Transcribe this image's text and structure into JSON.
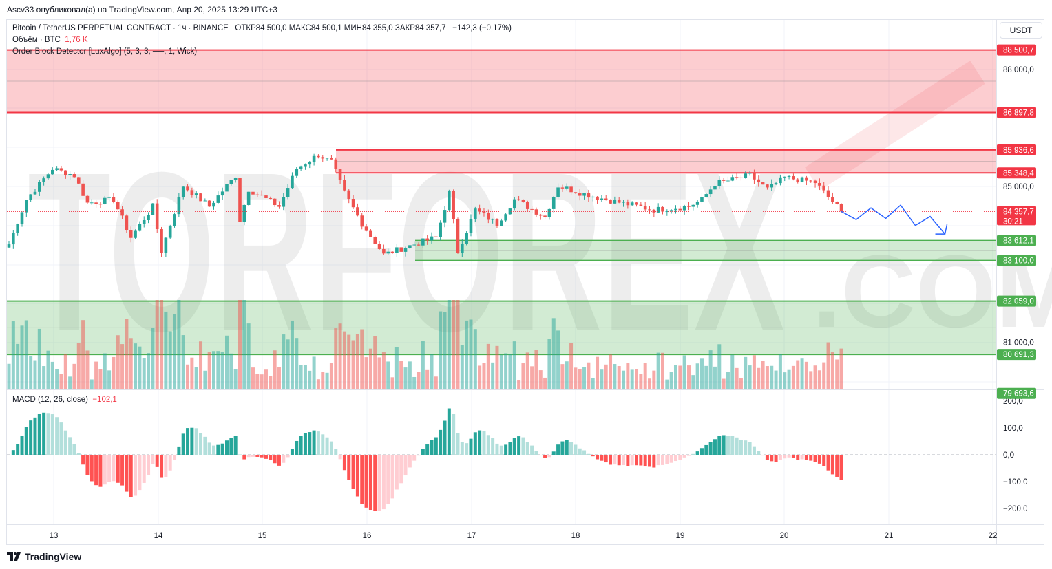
{
  "published": "Ascv33 опубликовал(а) на TradingView.com, Апр 20, 2025 13:29 UTC+3",
  "legend": {
    "symbol": "Bitcoin / TetherUS PERPETUAL CONTRACT · 1ч · BINANCE",
    "ohlc": "ОТКР84 500,0  МАКС84 500,1  МИН84 355,0  ЗАКР84 357,7",
    "change": "−142,3 (−0,17%)",
    "volume_label": "Объём · BTC",
    "volume_value": "1,76 K",
    "indicator": "Order Block Detector [LuxAlgo] (5, 3, 3, ──, 1, Wick)",
    "macd_label": "MACD (12, 26, close)",
    "macd_value": "−102,1"
  },
  "currency": "USDT",
  "watermark": "TORFOREX.COM",
  "footer_logo": "TradingView",
  "colors": {
    "up": "#26a69a",
    "down": "#ef5350",
    "bear_ob": "#f23645",
    "bull_ob": "#4caf50",
    "projection": "#2962ff"
  },
  "price_axis": {
    "ticks": [
      "88 000,0",
      "85 000,0",
      "81 000,0"
    ],
    "tick_values": [
      88000,
      85000,
      81000
    ]
  },
  "price_labels": [
    {
      "text": "88 500,7",
      "value": 88500.7,
      "type": "bear"
    },
    {
      "text": "86 897,8",
      "value": 86897.8,
      "type": "bear"
    },
    {
      "text": "85 936,6",
      "value": 85936.6,
      "type": "bear"
    },
    {
      "text": "85 348,4",
      "value": 85348.4,
      "type": "bear"
    },
    {
      "text": "84 357,7",
      "value": 84357.7,
      "type": "last",
      "timer": "30:21"
    },
    {
      "text": "83 612,1",
      "value": 83612.1,
      "type": "bull"
    },
    {
      "text": "83 100,0",
      "value": 83100.0,
      "type": "bull"
    },
    {
      "text": "82 059,0",
      "value": 82059.0,
      "type": "bull"
    },
    {
      "text": "80 691,3",
      "value": 80691.3,
      "type": "bull"
    },
    {
      "text": "79 693,6",
      "value": 79693.6,
      "type": "bull"
    }
  ],
  "macd_axis": {
    "ticks": [
      "200,0",
      "100,0",
      "0,0",
      "−100,0",
      "−200,0"
    ],
    "tick_values": [
      200,
      100,
      0,
      -100,
      -200
    ]
  },
  "time_axis": [
    "13",
    "14",
    "15",
    "16",
    "17",
    "18",
    "19",
    "20",
    "21",
    "22"
  ],
  "chart_data": {
    "type": "candlestick",
    "timeframe": "1h",
    "start_hour_offset_note": "hours since Apr 12 ~13:00",
    "key_closes": [
      [
        0,
        83518
      ],
      [
        4,
        84665
      ],
      [
        10,
        85459
      ],
      [
        15,
        85282
      ],
      [
        18,
        84576
      ],
      [
        24,
        84665
      ],
      [
        28,
        83694
      ],
      [
        33,
        84488
      ],
      [
        35,
        83341
      ],
      [
        40,
        85018
      ],
      [
        46,
        84488
      ],
      [
        52,
        85282
      ],
      [
        53,
        84135
      ],
      [
        55,
        84929
      ],
      [
        62,
        84488
      ],
      [
        66,
        85459
      ],
      [
        71,
        85812
      ],
      [
        74,
        85635
      ],
      [
        77,
        84841
      ],
      [
        81,
        84047
      ],
      [
        86,
        83253
      ],
      [
        93,
        83518
      ],
      [
        98,
        83694
      ],
      [
        101,
        84841
      ],
      [
        103,
        83341
      ],
      [
        107,
        84400
      ],
      [
        112,
        84047
      ],
      [
        116,
        84665
      ],
      [
        123,
        84224
      ],
      [
        126,
        85018
      ],
      [
        131,
        84841
      ],
      [
        137,
        84665
      ],
      [
        148,
        84400
      ],
      [
        156,
        84488
      ],
      [
        159,
        84665
      ],
      [
        162,
        85071
      ],
      [
        170,
        85282
      ],
      [
        174,
        84929
      ],
      [
        178,
        85229
      ],
      [
        185,
        85106
      ],
      [
        191,
        84357.7
      ]
    ],
    "order_blocks": [
      {
        "type": "bearish",
        "top": 88500.7,
        "bottom": 86897.8
      },
      {
        "type": "bearish",
        "top": 85936.6,
        "bottom": 85348.4
      },
      {
        "type": "bullish",
        "top": 83612.1,
        "bottom": 83100.0
      },
      {
        "type": "bullish",
        "top": 82059.0,
        "bottom": 80691.3
      }
    ],
    "projection": [
      84357.7,
      84150,
      84450,
      84180,
      84520,
      84000,
      84230,
      83780
    ],
    "price_range": [
      79550,
      89150
    ],
    "macd_range": [
      -240,
      240
    ]
  }
}
